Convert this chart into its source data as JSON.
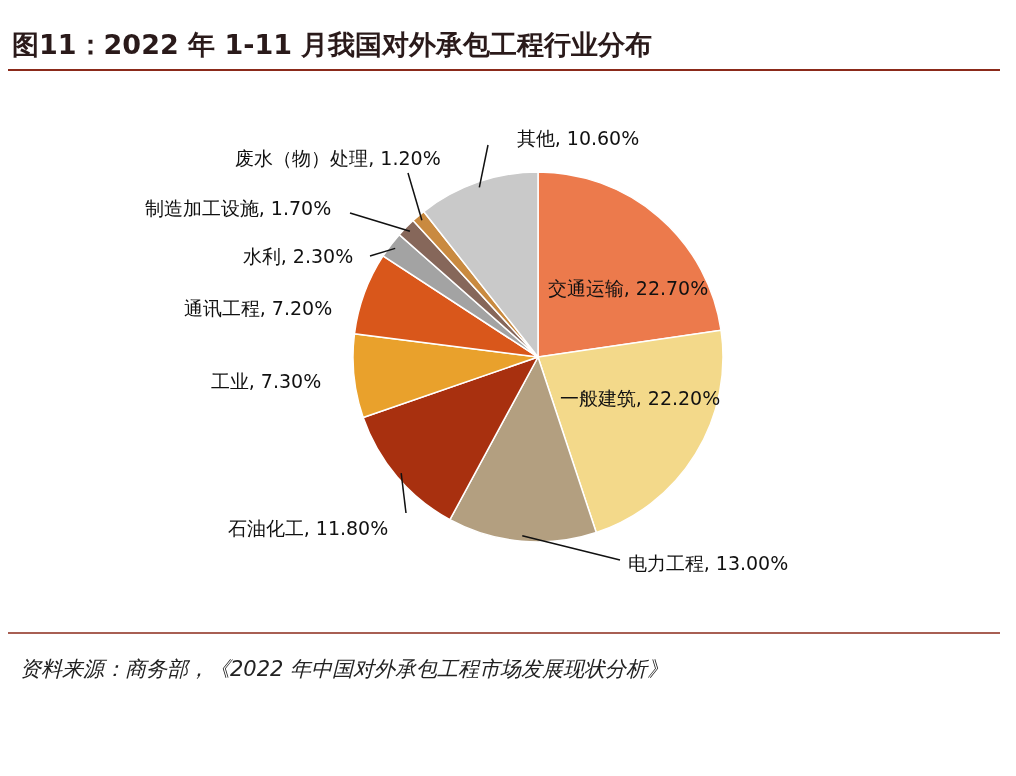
{
  "chart_data": {
    "type": "pie",
    "title": "图11：2022 年 1-11 月我国对外承包工程行业分布",
    "categories": [
      "交通运输",
      "一般建筑",
      "电力工程",
      "石油化工",
      "工业",
      "通讯工程",
      "水利",
      "制造加工设施",
      "废水（物）处理",
      "其他"
    ],
    "values": [
      22.7,
      22.2,
      13.0,
      11.8,
      7.3,
      7.2,
      2.3,
      1.7,
      1.2,
      10.6
    ],
    "value_labels": [
      "22.70%",
      "22.20%",
      "13.00%",
      "11.80%",
      "7.30%",
      "7.20%",
      "2.30%",
      "1.70%",
      "1.20%",
      "10.60%"
    ],
    "colors": [
      "#ec7a4c",
      "#f3d98a",
      "#b39f80",
      "#a8300f",
      "#e9a12c",
      "#d9571b",
      "#a3a3a3",
      "#86675a",
      "#c98a40",
      "#c9c9c9"
    ],
    "legend": false,
    "annotations": [
      "资料来源：商务部，《2022 年中国对外承包工程市场发展现状分析》"
    ]
  }
}
